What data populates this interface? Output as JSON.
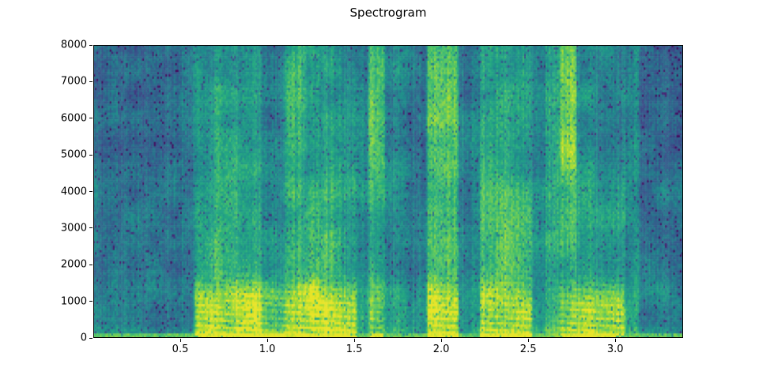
{
  "figure": {
    "background": "#ffffff"
  },
  "chart_data": {
    "type": "heatmap",
    "subtype": "spectrogram",
    "title": "Spectrogram",
    "xlabel": "",
    "ylabel": "",
    "xlim": [
      0,
      3.39
    ],
    "ylim": [
      0,
      8000
    ],
    "grid": false,
    "legend": null,
    "colormap": "viridis",
    "colormap_stops": [
      [
        0.0,
        68,
        1,
        84
      ],
      [
        0.13,
        71,
        44,
        122
      ],
      [
        0.25,
        59,
        81,
        139
      ],
      [
        0.38,
        44,
        113,
        142
      ],
      [
        0.5,
        33,
        144,
        141
      ],
      [
        0.63,
        39,
        173,
        129
      ],
      [
        0.75,
        92,
        200,
        99
      ],
      [
        0.88,
        170,
        220,
        50
      ],
      [
        1.0,
        253,
        231,
        37
      ]
    ],
    "xticks": [
      {
        "value": 0.5,
        "label": "0.5"
      },
      {
        "value": 1.0,
        "label": "1.0"
      },
      {
        "value": 1.5,
        "label": "1.5"
      },
      {
        "value": 2.0,
        "label": "2.0"
      },
      {
        "value": 2.5,
        "label": "2.5"
      },
      {
        "value": 3.0,
        "label": "3.0"
      }
    ],
    "yticks": [
      {
        "value": 0,
        "label": "0"
      },
      {
        "value": 1000,
        "label": "1000"
      },
      {
        "value": 2000,
        "label": "2000"
      },
      {
        "value": 3000,
        "label": "3000"
      },
      {
        "value": 4000,
        "label": "4000"
      },
      {
        "value": 5000,
        "label": "5000"
      },
      {
        "value": 6000,
        "label": "6000"
      },
      {
        "value": 7000,
        "label": "7000"
      },
      {
        "value": 8000,
        "label": "8000"
      }
    ],
    "bands_hz": {
      "low": [
        0,
        1500
      ],
      "mid": [
        1500,
        4500
      ],
      "high": [
        4500,
        8000
      ]
    },
    "bottom_band": {
      "freq_max_hz": 150,
      "voiced_level": 0.92,
      "quiet_level": 0.7
    },
    "segments": [
      {
        "t0": 0.0,
        "t1": 0.42,
        "low": 0.42,
        "mid": 0.41,
        "high": 0.38
      },
      {
        "t0": 0.42,
        "t1": 0.5,
        "low": 0.4,
        "mid": 0.38,
        "high": 0.36
      },
      {
        "t0": 0.5,
        "t1": 0.58,
        "low": 0.44,
        "mid": 0.42,
        "high": 0.4
      },
      {
        "t0": 0.58,
        "t1": 0.7,
        "low": 0.88,
        "mid": 0.6,
        "high": 0.52
      },
      {
        "t0": 0.7,
        "t1": 0.82,
        "low": 0.82,
        "mid": 0.66,
        "high": 0.6
      },
      {
        "t0": 0.82,
        "t1": 0.97,
        "low": 0.88,
        "mid": 0.62,
        "high": 0.56
      },
      {
        "t0": 0.97,
        "t1": 1.1,
        "low": 0.72,
        "mid": 0.5,
        "high": 0.46
      },
      {
        "t0": 1.1,
        "t1": 1.22,
        "low": 0.88,
        "mid": 0.66,
        "high": 0.66
      },
      {
        "t0": 1.22,
        "t1": 1.38,
        "low": 0.9,
        "mid": 0.68,
        "high": 0.55
      },
      {
        "t0": 1.38,
        "t1": 1.52,
        "low": 0.84,
        "mid": 0.62,
        "high": 0.5
      },
      {
        "t0": 1.52,
        "t1": 1.58,
        "low": 0.6,
        "mid": 0.52,
        "high": 0.48
      },
      {
        "t0": 1.58,
        "t1": 1.68,
        "low": 0.72,
        "mid": 0.62,
        "high": 0.74
      },
      {
        "t0": 1.68,
        "t1": 1.8,
        "low": 0.62,
        "mid": 0.52,
        "high": 0.5
      },
      {
        "t0": 1.8,
        "t1": 1.92,
        "low": 0.5,
        "mid": 0.45,
        "high": 0.42
      },
      {
        "t0": 1.92,
        "t1": 2.1,
        "low": 0.9,
        "mid": 0.7,
        "high": 0.78
      },
      {
        "t0": 2.1,
        "t1": 2.22,
        "low": 0.55,
        "mid": 0.47,
        "high": 0.45
      },
      {
        "t0": 2.22,
        "t1": 2.4,
        "low": 0.86,
        "mid": 0.7,
        "high": 0.62
      },
      {
        "t0": 2.4,
        "t1": 2.52,
        "low": 0.84,
        "mid": 0.66,
        "high": 0.55
      },
      {
        "t0": 2.52,
        "t1": 2.6,
        "low": 0.55,
        "mid": 0.48,
        "high": 0.45
      },
      {
        "t0": 2.6,
        "t1": 2.68,
        "low": 0.7,
        "mid": 0.6,
        "high": 0.62
      },
      {
        "t0": 2.68,
        "t1": 2.78,
        "low": 0.78,
        "mid": 0.66,
        "high": 0.82
      },
      {
        "t0": 2.78,
        "t1": 2.9,
        "low": 0.8,
        "mid": 0.58,
        "high": 0.52
      },
      {
        "t0": 2.9,
        "t1": 3.05,
        "low": 0.82,
        "mid": 0.56,
        "high": 0.48
      },
      {
        "t0": 3.05,
        "t1": 3.14,
        "low": 0.6,
        "mid": 0.5,
        "high": 0.52
      },
      {
        "t0": 3.14,
        "t1": 3.4,
        "low": 0.44,
        "mid": 0.4,
        "high": 0.36
      }
    ]
  }
}
